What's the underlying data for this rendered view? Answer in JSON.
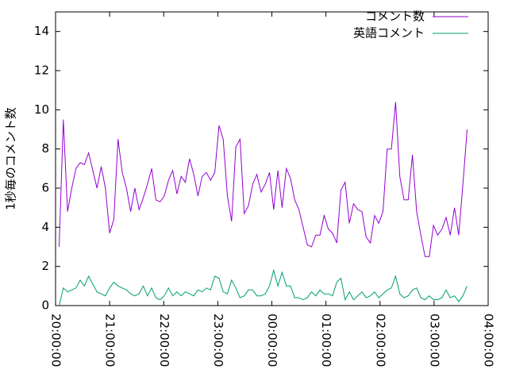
{
  "chart_data": {
    "type": "line",
    "ylabel": "1秒毎のコメント数",
    "x": [
      "20:04:00",
      "20:08:40",
      "20:13:20",
      "20:18:00",
      "20:22:40",
      "20:27:20",
      "20:32:00",
      "20:36:40",
      "20:41:20",
      "20:46:00",
      "20:50:40",
      "20:55:20",
      "21:00:00",
      "21:04:40",
      "21:09:20",
      "21:14:00",
      "21:18:40",
      "21:23:20",
      "21:28:00",
      "21:32:40",
      "21:37:20",
      "21:42:00",
      "21:46:40",
      "21:51:20",
      "21:56:00",
      "22:00:40",
      "22:05:20",
      "22:10:00",
      "22:14:40",
      "22:19:20",
      "22:24:00",
      "22:28:40",
      "22:33:20",
      "22:38:00",
      "22:42:40",
      "22:47:20",
      "22:52:00",
      "22:56:40",
      "23:01:20",
      "23:06:00",
      "23:10:40",
      "23:15:20",
      "23:20:00",
      "23:24:40",
      "23:29:20",
      "23:34:00",
      "23:38:40",
      "23:43:20",
      "23:48:00",
      "23:52:40",
      "23:57:20",
      "00:02:00",
      "00:06:40",
      "00:11:20",
      "00:16:00",
      "00:20:40",
      "00:25:20",
      "00:30:00",
      "00:34:40",
      "00:39:20",
      "00:44:00",
      "00:48:40",
      "00:53:20",
      "00:58:00",
      "01:02:40",
      "01:07:20",
      "01:12:00",
      "01:16:40",
      "01:21:20",
      "01:26:00",
      "01:30:40",
      "01:35:20",
      "01:40:00",
      "01:44:40",
      "01:49:20",
      "01:54:00",
      "01:58:40",
      "02:03:20",
      "02:08:00",
      "02:12:40",
      "02:17:20",
      "02:22:00",
      "02:26:40",
      "02:31:20",
      "02:36:00",
      "02:40:40",
      "02:45:20",
      "02:50:00",
      "02:54:40",
      "02:59:20",
      "03:04:00",
      "03:08:40",
      "03:13:20",
      "03:18:00",
      "03:22:40",
      "03:27:20",
      "03:32:00",
      "03:36:40"
    ],
    "series": [
      {
        "name": "コメント数",
        "color": "#9400d3",
        "values": [
          3.0,
          9.5,
          4.8,
          6.0,
          7.0,
          7.3,
          7.2,
          7.8,
          6.9,
          6.0,
          7.1,
          6.0,
          3.7,
          4.4,
          8.5,
          6.8,
          6.0,
          4.8,
          6.0,
          4.9,
          5.5,
          6.2,
          7.0,
          5.4,
          5.3,
          5.6,
          6.4,
          6.9,
          5.7,
          6.6,
          6.3,
          7.5,
          6.7,
          5.6,
          6.6,
          6.8,
          6.4,
          6.8,
          9.2,
          8.5,
          5.6,
          4.3,
          8.1,
          8.5,
          4.7,
          5.1,
          6.2,
          6.7,
          5.8,
          6.2,
          6.8,
          4.9,
          6.9,
          5.0,
          7.0,
          6.5,
          5.4,
          4.9,
          4.0,
          3.1,
          3.0,
          3.6,
          3.6,
          4.6,
          3.9,
          3.7,
          3.2,
          5.9,
          6.3,
          4.2,
          5.2,
          4.9,
          4.8,
          3.5,
          3.2,
          4.6,
          4.2,
          4.8,
          8.0,
          8.0,
          10.4,
          6.6,
          5.4,
          5.4,
          7.7,
          4.8,
          3.6,
          2.5,
          2.5,
          4.1,
          3.6,
          3.9,
          4.5,
          3.6,
          5.0,
          3.6,
          6.2,
          9.0
        ]
      },
      {
        "name": "英語コメント",
        "color": "#009e73",
        "values": [
          0,
          0.9,
          0.7,
          0.8,
          0.9,
          1.3,
          1.0,
          1.5,
          1.1,
          0.7,
          0.6,
          0.5,
          0.9,
          1.2,
          1.0,
          0.9,
          0.8,
          0.6,
          0.5,
          0.6,
          1.0,
          0.5,
          0.9,
          0.4,
          0.3,
          0.5,
          0.9,
          0.5,
          0.7,
          0.5,
          0.7,
          0.6,
          0.5,
          0.8,
          0.7,
          0.9,
          0.8,
          1.5,
          1.4,
          0.7,
          0.6,
          1.3,
          0.9,
          0.4,
          0.5,
          0.8,
          0.8,
          0.5,
          0.5,
          0.6,
          1.0,
          1.8,
          1.0,
          1.7,
          1.0,
          1.0,
          0.4,
          0.4,
          0.3,
          0.4,
          0.7,
          0.5,
          0.8,
          0.6,
          0.6,
          0.5,
          1.2,
          1.4,
          0.3,
          0.7,
          0.3,
          0.5,
          0.7,
          0.4,
          0.5,
          0.7,
          0.4,
          0.6,
          0.8,
          0.9,
          1.5,
          0.6,
          0.4,
          0.5,
          0.8,
          0.9,
          0.4,
          0.3,
          0.5,
          0.3,
          0.3,
          0.4,
          0.8,
          0.4,
          0.5,
          0.2,
          0.5,
          1.0
        ]
      }
    ],
    "xlim": [
      "20:00:00",
      "04:00:00"
    ],
    "xticks": [
      "20:00:00",
      "21:00:00",
      "22:00:00",
      "23:00:00",
      "00:00:00",
      "01:00:00",
      "02:00:00",
      "03:00:00",
      "04:00:00"
    ],
    "ylim": [
      0,
      15
    ],
    "yticks": [
      0,
      2,
      4,
      6,
      8,
      10,
      12,
      14
    ],
    "legend": "top-right"
  }
}
